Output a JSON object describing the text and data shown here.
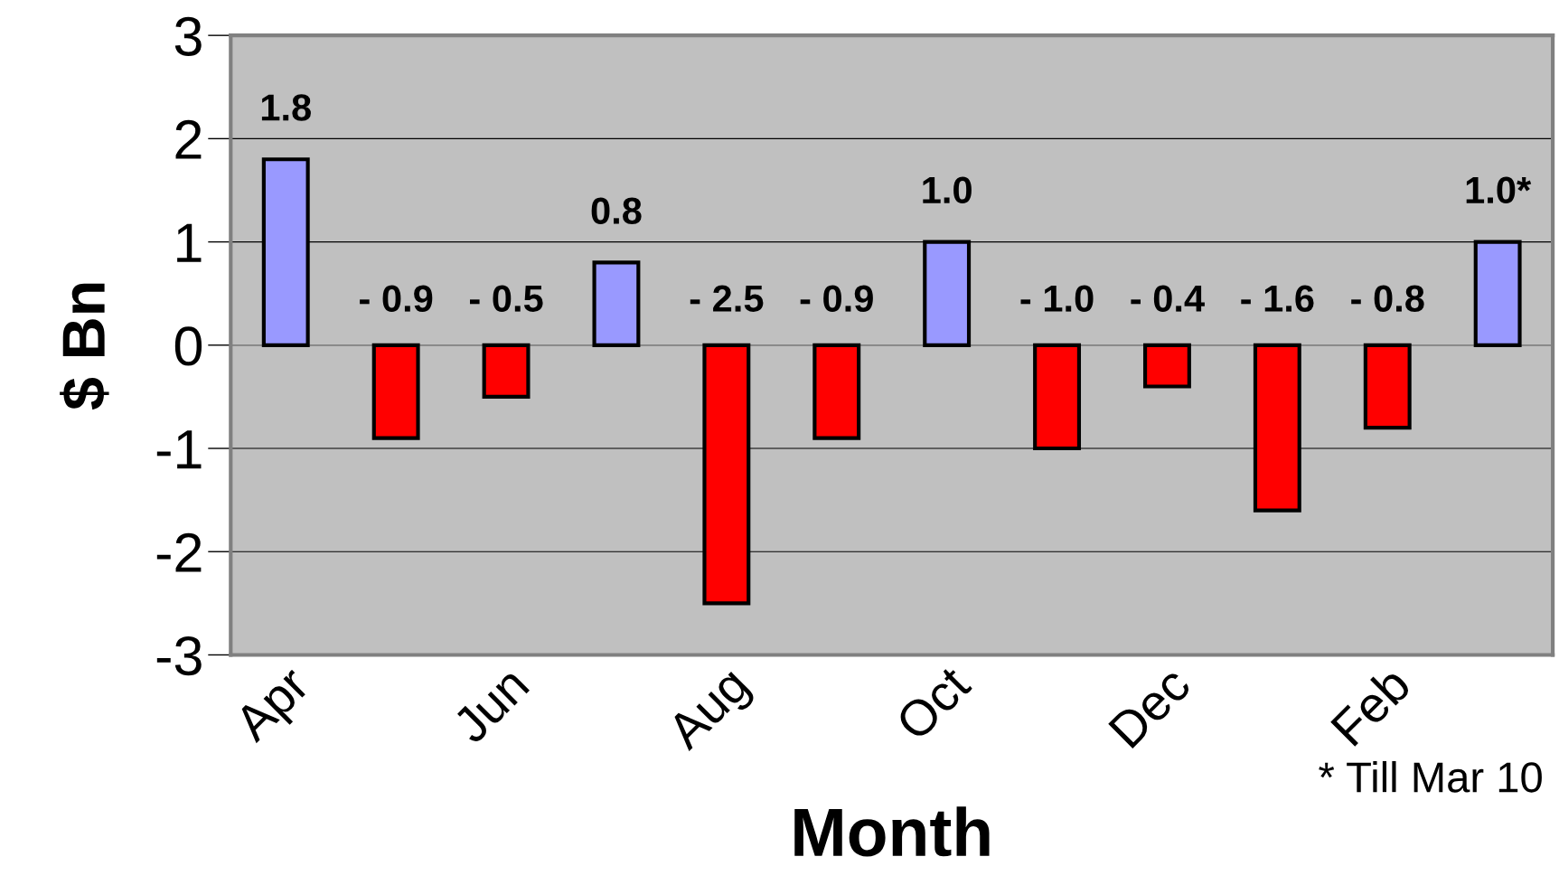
{
  "chart_data": {
    "type": "bar",
    "xlabel": "Month",
    "ylabel": "$ Bn",
    "categories": [
      "Apr",
      null,
      "Jun",
      null,
      "Aug",
      null,
      "Oct",
      null,
      "Dec",
      null,
      "Feb",
      null
    ],
    "values": [
      1.8,
      -0.9,
      -0.5,
      0.8,
      -2.5,
      -0.9,
      1.0,
      -1.0,
      -0.4,
      -1.6,
      -0.8,
      1.0
    ],
    "colors": [
      "#9999ff",
      "#ff0000",
      "#ff0000",
      "#9999ff",
      "#ff0000",
      "#ff0000",
      "#9999ff",
      "#ff0000",
      "#ff0000",
      "#ff0000",
      "#ff0000",
      "#9999ff"
    ],
    "value_labels": [
      "1.8",
      "- 0.9",
      "- 0.5",
      "0.8",
      "- 2.5",
      "- 0.9",
      "1.0",
      "- 1.0",
      "- 0.4",
      "- 1.6",
      "- 0.8",
      "1.0*"
    ],
    "ylim": [
      -3,
      3
    ],
    "yticks": [
      -3,
      -2,
      -1,
      0,
      1,
      2,
      3
    ],
    "grid": "y",
    "annotations": [
      "* Till Mar 10"
    ]
  }
}
